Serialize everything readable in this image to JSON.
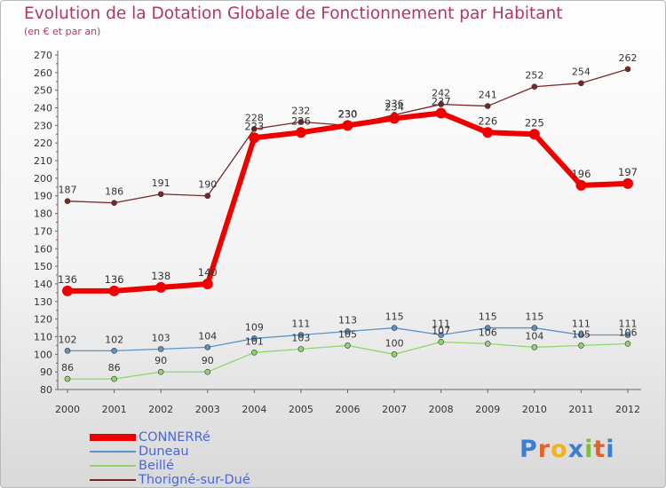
{
  "title": "Evolution de la Dotation Globale de Fonctionnement par Habitant",
  "subtitle": "(en € et par an)",
  "logo": {
    "text": "Proxiti",
    "letters": [
      "P",
      "r",
      "o",
      "x",
      "i",
      "t",
      "i"
    ],
    "colors": [
      "#3a7fd0",
      "#e4622a",
      "#f0b21e",
      "#3a7fd0",
      "#7bbd3c",
      "#e4622a",
      "#3a7fd0"
    ]
  },
  "chart_data": {
    "type": "line",
    "title": "Evolution de la Dotation Globale de Fonctionnement par Habitant",
    "subtitle": "(en € et par an)",
    "xlabel": "",
    "ylabel": "",
    "ylim": [
      80,
      270
    ],
    "yticks": [
      80,
      90,
      100,
      110,
      120,
      130,
      140,
      150,
      160,
      170,
      180,
      190,
      200,
      210,
      220,
      230,
      240,
      250,
      260,
      270
    ],
    "grid": false,
    "legend_position": "bottom-left",
    "categories": [
      "2000",
      "2001",
      "2002",
      "2003",
      "2004",
      "2005",
      "2006",
      "2007",
      "2008",
      "2009",
      "2010",
      "2011",
      "2012"
    ],
    "series": [
      {
        "name": "CONNERRé",
        "color": "#ee0000",
        "values": [
          136,
          136,
          138,
          140,
          223,
          226,
          230,
          234,
          237,
          226,
          225,
          196,
          197
        ]
      },
      {
        "name": "Duneau",
        "color": "#5b93c7",
        "values": [
          102,
          102,
          103,
          104,
          109,
          111,
          113,
          115,
          111,
          115,
          115,
          111,
          111
        ]
      },
      {
        "name": "Beillé",
        "color": "#8fd66a",
        "values": [
          86,
          86,
          90,
          90,
          101,
          103,
          105,
          100,
          107,
          106,
          104,
          105,
          106
        ]
      },
      {
        "name": "Thorigné-sur-Dué",
        "color": "#7a2626",
        "values": [
          187,
          186,
          191,
          190,
          228,
          232,
          230,
          236,
          242,
          241,
          252,
          254,
          262
        ]
      }
    ]
  }
}
